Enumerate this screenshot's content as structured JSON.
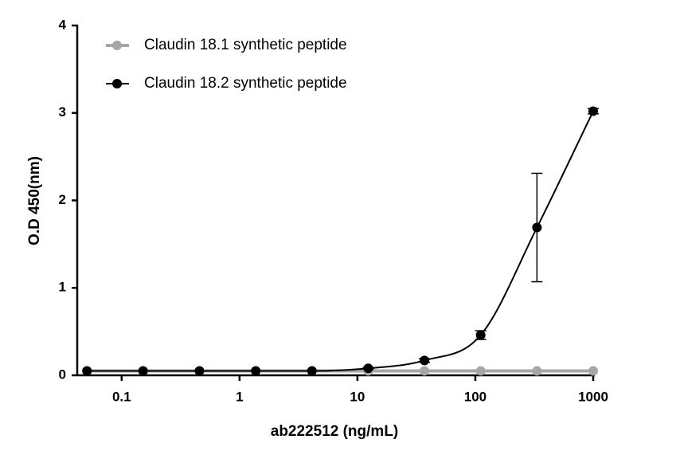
{
  "chart_data": {
    "type": "line",
    "x_label": "ab222512 (ng/mL)",
    "y_label": "O.D 450(nm)",
    "x_scale": "log",
    "x": [
      0.0508,
      0.152,
      0.457,
      1.372,
      4.115,
      12.35,
      37.04,
      111.1,
      333.3,
      1000
    ],
    "series": [
      {
        "name": "Claudin 18.1 synthetic peptide",
        "color": "#a6a6a6",
        "smooth": false,
        "values": [
          0.05,
          0.05,
          0.05,
          0.05,
          0.05,
          0.05,
          0.05,
          0.05,
          0.05,
          0.05
        ]
      },
      {
        "name": "Claudin 18.2 synthetic peptide",
        "color": "#000000",
        "smooth": true,
        "values": [
          0.05,
          0.05,
          0.05,
          0.05,
          0.05,
          0.08,
          0.17,
          0.46,
          1.69,
          3.02
        ],
        "errors": [
          0,
          0,
          0,
          0,
          0,
          0.01,
          0.02,
          0.05,
          0.62,
          0.03
        ]
      }
    ],
    "xlim": [
      0.042,
      1000
    ],
    "xticks": [
      0.1,
      1,
      10,
      100,
      1000
    ],
    "ylim": [
      0,
      4
    ],
    "yticks": [
      0,
      1,
      2,
      3,
      4
    ],
    "grid": false,
    "legend": "top-left"
  }
}
